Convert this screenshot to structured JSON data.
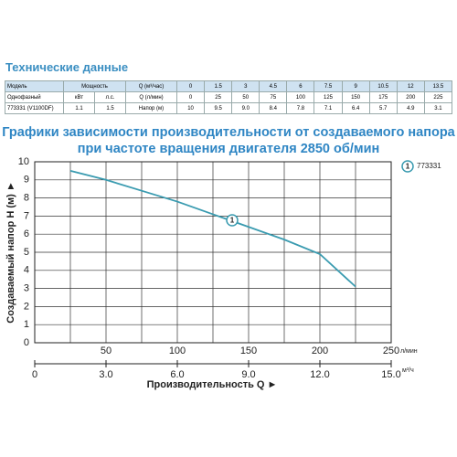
{
  "header": {
    "title": "Технические данные"
  },
  "table": {
    "rows": [
      [
        "Модель",
        "Мощность",
        "Q (м³/час)",
        "0",
        "1.5",
        "3",
        "4.5",
        "6",
        "7.5",
        "9",
        "10.5",
        "12",
        "13.5"
      ],
      [
        "Однофазный",
        "кВт",
        "л.с.",
        "Q (л/мин)",
        "0",
        "25",
        "50",
        "75",
        "100",
        "125",
        "150",
        "175",
        "200",
        "225"
      ],
      [
        "773331 (V1100DF)",
        "1.1",
        "1.5",
        "Напор (м)",
        "10",
        "9.5",
        "9.0",
        "8.4",
        "7.8",
        "7.1",
        "6.4",
        "5.7",
        "4.9",
        "3.1"
      ]
    ]
  },
  "chart_data": {
    "type": "line",
    "title": "Графики зависимости производительности от создаваемого напора",
    "subtitle": "при частоте вращения двигателя 2850 об/мин",
    "x": [
      25,
      50,
      75,
      100,
      125,
      150,
      175,
      200,
      225
    ],
    "series": [
      {
        "name": "773331",
        "label": "1",
        "color": "#3a9bb0",
        "values": [
          9.5,
          9.0,
          8.4,
          7.8,
          7.1,
          6.4,
          5.7,
          4.9,
          3.1
        ]
      }
    ],
    "xlim": [
      0,
      250
    ],
    "xticks": [
      50,
      100,
      150,
      200,
      250
    ],
    "x_unit": "л/мин",
    "x2lim": [
      0,
      15
    ],
    "x2ticks": [
      0,
      {
        "value": 3,
        "label": "3.0"
      },
      {
        "value": 6,
        "label": "6.0"
      },
      {
        "value": 9,
        "label": "9.0"
      },
      {
        "value": 12,
        "label": "12.0"
      },
      {
        "value": 15,
        "label": "15.0"
      }
    ],
    "x2_unit": "м³/ч",
    "xlabel": "Производительность Q ►",
    "ylabel": "Создаваемый напор H (м) ►",
    "ylim": [
      0,
      10
    ],
    "yticks": [
      0,
      1,
      2,
      3,
      4,
      5,
      6,
      7,
      8,
      9,
      10
    ],
    "grid": true
  }
}
